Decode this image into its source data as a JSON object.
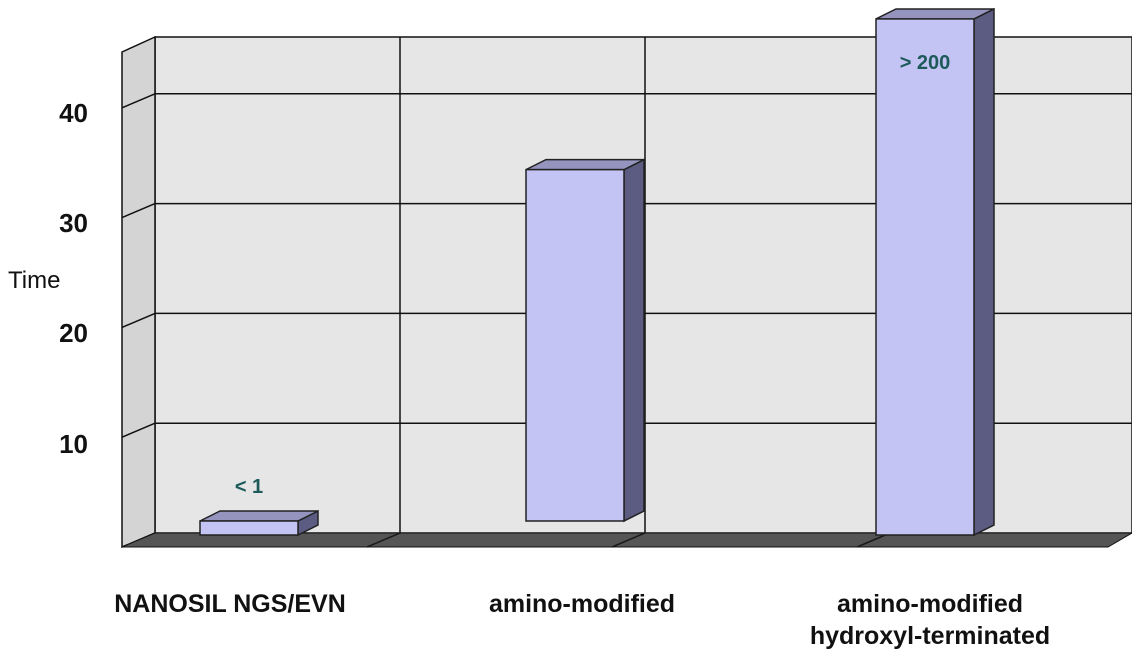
{
  "chart_data": {
    "type": "bar",
    "title": "",
    "xlabel": "",
    "ylabel": "Time",
    "ylim": [
      0,
      45
    ],
    "yticks": [
      "10",
      "20",
      "30",
      "40"
    ],
    "grid": true,
    "three_d": true,
    "categories": [
      [
        "NANOSIL NGS/EVN"
      ],
      [
        "amino-modified"
      ],
      [
        "amino-modified",
        "hydroxyl-terminated"
      ]
    ],
    "values": [
      0.3,
      32,
      47
    ],
    "data_labels": [
      "< 1",
      "",
      "> 200"
    ],
    "colors": {
      "bar_front": "#c4c4f4",
      "bar_side": "#5c5c82",
      "bar_top": "#9494bf",
      "wall": "#e6e6e6",
      "floor": "#555555",
      "label": "#1e5a5a"
    }
  }
}
